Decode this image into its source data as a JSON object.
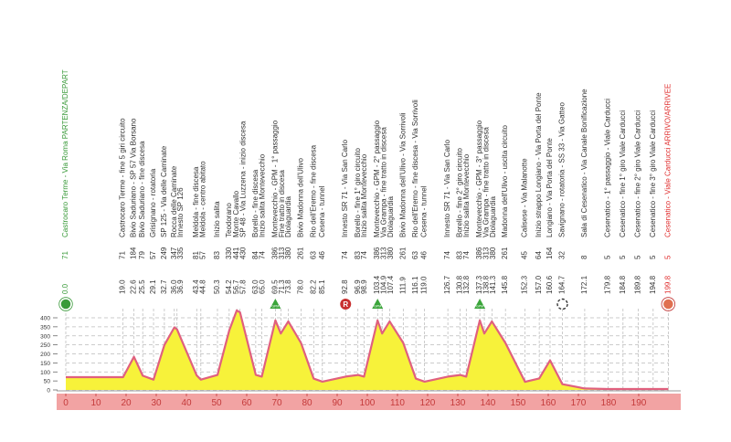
{
  "chart_data": {
    "type": "area",
    "x": [
      0.0,
      19.0,
      22.6,
      25.5,
      29.1,
      32.7,
      36.0,
      36.9,
      43.4,
      44.8,
      50.3,
      54.2,
      56.7,
      57.8,
      63.0,
      65.0,
      69.5,
      71.3,
      73.8,
      78.0,
      82.2,
      85.1,
      92.8,
      96.9,
      98.9,
      103.4,
      104.9,
      107.4,
      111.9,
      116.1,
      119.0,
      126.7,
      130.8,
      132.8,
      137.3,
      138.8,
      141.3,
      145.8,
      152.3,
      157.0,
      160.6,
      164.7,
      172.1,
      179.8,
      184.8,
      189.8,
      194.8,
      199.8
    ],
    "x_labels": [
      "0.0",
      "19.0",
      "22.6",
      "25.5",
      "29.1",
      "32.7",
      "36.0",
      "36.9",
      "43.4",
      "44.8",
      "50.3",
      "54.2",
      "56.7",
      "57.8",
      "63.0",
      "65.0",
      "69.5",
      "71.3",
      "73.8",
      "78.0",
      "82.2",
      "85.1",
      "92.8",
      "96.9",
      "98.9",
      "103.4",
      "104.9",
      "107.4",
      "111.9",
      "116.1",
      "119.0",
      "126.7",
      "130.8",
      "132.8",
      "137.3",
      "138.8",
      "141.3",
      "145.8",
      "152.3",
      "157.0",
      "160.6",
      "164.7",
      "172.1",
      "179.8",
      "184.8",
      "189.8",
      "194.8",
      "199.8"
    ],
    "values": [
      71,
      71,
      184,
      79,
      57,
      249,
      347,
      335,
      81,
      57,
      83,
      330,
      441,
      430,
      84,
      74,
      386,
      313,
      380,
      261,
      63,
      46,
      74,
      83,
      74,
      386,
      313,
      380,
      261,
      63,
      46,
      74,
      83,
      74,
      386,
      313,
      380,
      261,
      45,
      64,
      164,
      32,
      8,
      5,
      5,
      5,
      5,
      5
    ],
    "labels": [
      "Castrocaro Terme - Via Roma PARTENZA/DEPART",
      "Castrocaro Terme - fine 5 giri circuito",
      "Bivio Saduriano - SP 57 Via Borsano",
      "Bivio Saduriano - fine discesa",
      "Grisignano - rotatoria",
      "SP 125 - Via delle Caminate",
      "Rocca delle Caminate",
      "Innesto SP 126",
      "Meldola - fine discesa",
      "Meldola - centro abitato",
      "Inizio salita",
      "Teodorano",
      "Monte Cavallo",
      "SP 48 - Via Luzzena - inizio discesa",
      "Borello - fine discesa",
      "Inizio salita Montevecchio",
      "Montevecchio - GPM - 1° passaggio",
      "Fine tratto in discesa",
      "Diolaguardia",
      "Bivio Madonna dell'Ulivo",
      "Rio dell'Eremo - fine discesa",
      "Cesena - tunnel",
      "Innesto SR 71 - Via San Carlo",
      "Borello - fine 1° giro circuito",
      "Inizio salita Montevecchio",
      "Montevecchio - GPM - 2° passaggio",
      "Via Grampa - fine tratto in discesa",
      "Diolaguardia",
      "Bivio Madonna dell'Ulivo - Via Sorrivoli",
      "Rio dell'Eremo - fine discesa - Via Sorrivoli",
      "Cesena - tunnel",
      "Innesto SR 71 - Via San Carlo",
      "Borello - fine 2° giro circuito",
      "Inizio salita Montevecchio",
      "Montevecchio - GPM - 3° passaggio",
      "Via Grampa - fine tratto in discesa",
      "Diolaguardia",
      "Madonna dell'Ulivo - uscita circuito",
      "Calisese - Via Malanotte",
      "Inizio strappo Longiano - Via Porta del Ponte",
      "Longiano - Via Porta del Ponte",
      "Savignano - rotatoria - SS 33 - Via Gatteo",
      "Sala di Cesenatico - Via Canale Bonificazione",
      "Cesenatico - 1° passaggio - Viale Carducci",
      "Cesenatico - fine 1° giro Viale Carducci",
      "Cesenatico - fine 2° giro Viale Carducci",
      "Cesenatico - fine 3° giro Viale Carducci",
      "Cesenatico - Viale Carducci ARRIVO/ARRIVEE"
    ],
    "color": "#f7f23a",
    "line_color": "#e0607e",
    "xlim": [
      0,
      200
    ],
    "xticks": [
      0,
      10,
      20,
      30,
      40,
      50,
      60,
      70,
      80,
      90,
      100,
      110,
      120,
      130,
      140,
      150,
      160,
      170,
      180,
      190
    ],
    "ylim": [
      0,
      400
    ],
    "yticks": [
      0,
      50,
      100,
      150,
      200,
      250,
      300,
      350,
      400
    ],
    "grid": true,
    "gpm_label": "GPM",
    "sprint_label": "R"
  }
}
